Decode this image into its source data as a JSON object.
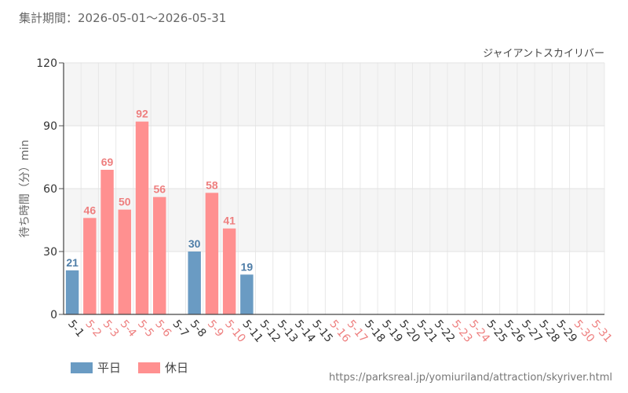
{
  "period_label": "集計期間：2026-05-01～2026-05-31",
  "source_url": "https://parksreal.jp/yomiuriland/attraction/skyriver.html",
  "legend": {
    "weekday": {
      "label": "平日",
      "color": "#6a9bc3"
    },
    "holiday": {
      "label": "休日",
      "color": "#ff9090"
    }
  },
  "chart_data": {
    "type": "bar",
    "title": "ジャイアントスカイリバー",
    "xlabel": "",
    "ylabel": "待ち時間（分）min",
    "ylim": [
      0,
      120
    ],
    "yticks": [
      0,
      30,
      60,
      90,
      120
    ],
    "grid": true,
    "legend_position": "bottom-left",
    "categories": [
      "5-1",
      "5-2",
      "5-3",
      "5-4",
      "5-5",
      "5-6",
      "5-7",
      "5-8",
      "5-9",
      "5-10",
      "5-11",
      "5-12",
      "5-13",
      "5-14",
      "5-15",
      "5-16",
      "5-17",
      "5-18",
      "5-19",
      "5-20",
      "5-21",
      "5-22",
      "5-23",
      "5-24",
      "5-25",
      "5-26",
      "5-27",
      "5-28",
      "5-29",
      "5-30",
      "5-31"
    ],
    "day_types": [
      "weekday",
      "holiday",
      "holiday",
      "holiday",
      "holiday",
      "holiday",
      "weekday",
      "weekday",
      "holiday",
      "holiday",
      "weekday",
      "weekday",
      "weekday",
      "weekday",
      "weekday",
      "holiday",
      "holiday",
      "weekday",
      "weekday",
      "weekday",
      "weekday",
      "weekday",
      "holiday",
      "holiday",
      "weekday",
      "weekday",
      "weekday",
      "weekday",
      "weekday",
      "holiday",
      "holiday"
    ],
    "values": [
      21,
      46,
      69,
      50,
      92,
      56,
      null,
      30,
      58,
      41,
      19,
      null,
      null,
      null,
      null,
      null,
      null,
      null,
      null,
      null,
      null,
      null,
      null,
      null,
      null,
      null,
      null,
      null,
      null,
      null,
      null
    ],
    "colors": {
      "weekday": "#6a9bc3",
      "holiday": "#ff9090",
      "weekday_label": "#4f7ea8",
      "holiday_label": "#ee7f7f",
      "tick_weekday": "#333333",
      "tick_holiday": "#ee7f7f"
    }
  }
}
